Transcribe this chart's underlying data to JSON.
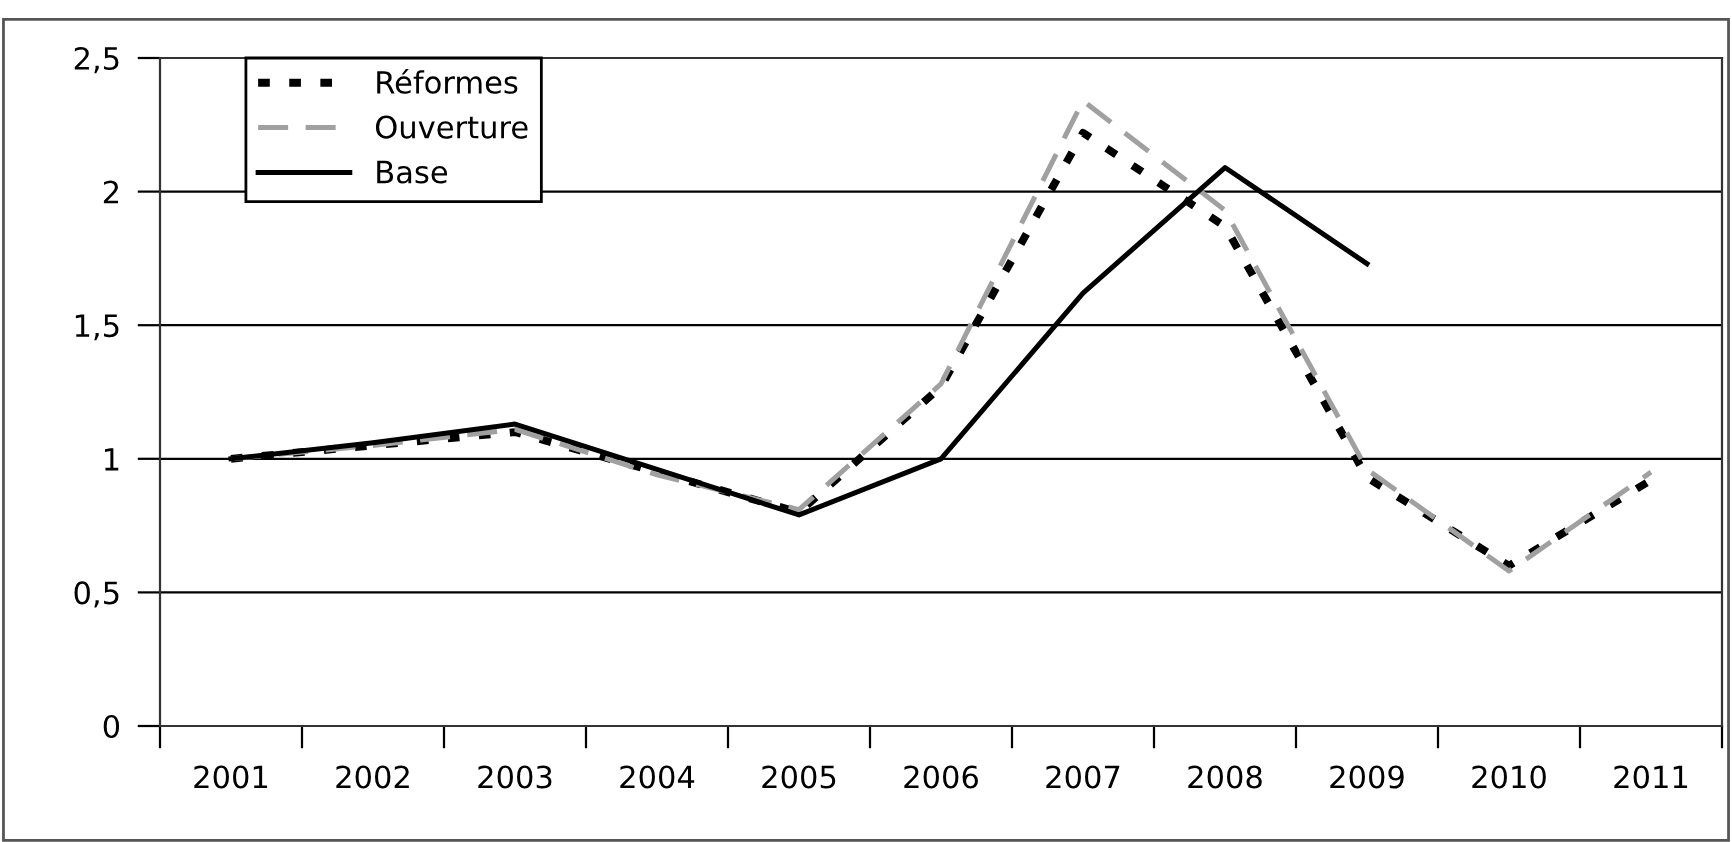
{
  "chart_data": {
    "type": "line",
    "categories": [
      "2001",
      "2002",
      "2003",
      "2004",
      "2005",
      "2006",
      "2007",
      "2008",
      "2009",
      "2010",
      "2011"
    ],
    "series": [
      {
        "name": "Réformes",
        "color": "#000000",
        "line_style": "dotted",
        "values": [
          1.0,
          1.05,
          1.1,
          0.95,
          0.8,
          1.27,
          2.22,
          1.87,
          0.93,
          0.6,
          0.92
        ]
      },
      {
        "name": "Ouverture",
        "color": "#a0a0a0",
        "line_style": "dashed",
        "values": [
          1.0,
          1.05,
          1.11,
          0.94,
          0.81,
          1.28,
          2.34,
          1.93,
          0.96,
          0.58,
          0.95
        ]
      },
      {
        "name": "Base",
        "color": "#000000",
        "line_style": "solid",
        "values": [
          1.0,
          1.06,
          1.13,
          0.96,
          0.79,
          1.0,
          1.62,
          2.09,
          1.73,
          null,
          null
        ]
      }
    ],
    "ylim": [
      0,
      2.5
    ],
    "yticks": [
      {
        "value": 0,
        "label": "0"
      },
      {
        "value": 0.5,
        "label": "0,5"
      },
      {
        "value": 1,
        "label": "1"
      },
      {
        "value": 1.5,
        "label": "1,5"
      },
      {
        "value": 2,
        "label": "2"
      },
      {
        "value": 2.5,
        "label": "2,5"
      }
    ],
    "grid": "y",
    "legend": "top left",
    "marker": "none"
  }
}
